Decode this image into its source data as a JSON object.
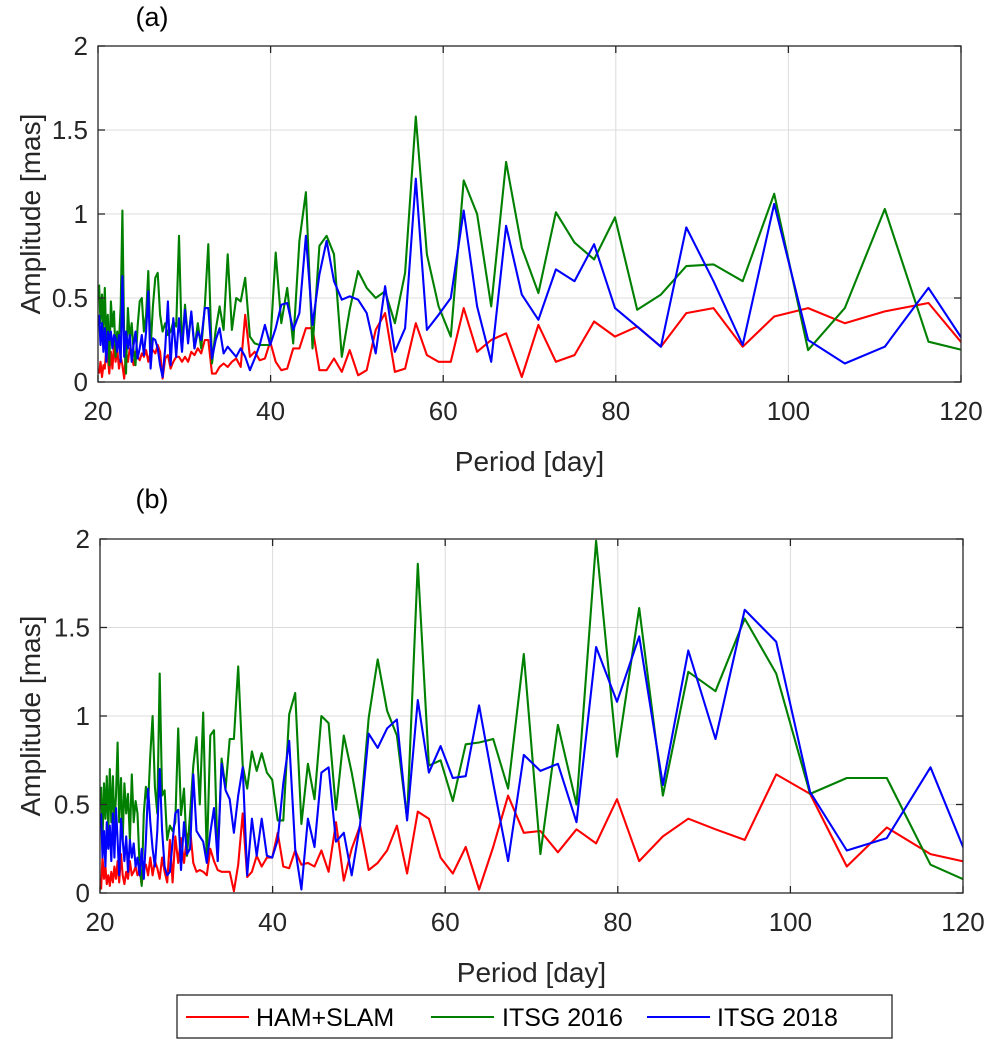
{
  "chart_data": {
    "type": "line",
    "legend": {
      "placement": "bottom-center",
      "entries": [
        "HAM+SLAM",
        "ITSG 2016",
        "ITSG 2018"
      ]
    },
    "colors": {
      "HAM+SLAM": "#ff0000",
      "ITSG 2016": "#008000",
      "ITSG 2018": "#0000ff"
    },
    "x": [
      20.13,
      20.29,
      20.46,
      20.62,
      20.79,
      20.96,
      21.13,
      21.31,
      21.49,
      21.67,
      21.85,
      22.04,
      22.23,
      22.43,
      22.63,
      22.83,
      23.04,
      23.25,
      23.46,
      23.68,
      23.9,
      24.12,
      24.35,
      24.59,
      24.83,
      25.07,
      25.32,
      25.57,
      25.83,
      26.09,
      26.36,
      26.64,
      26.92,
      27.2,
      27.49,
      27.79,
      28.1,
      28.41,
      28.73,
      29.06,
      29.39,
      29.73,
      30.08,
      30.44,
      30.81,
      31.18,
      31.57,
      31.96,
      32.37,
      32.78,
      33.21,
      33.64,
      34.09,
      34.55,
      35.03,
      35.51,
      36.01,
      36.53,
      37.06,
      37.6,
      38.16,
      38.74,
      39.34,
      39.95,
      40.59,
      41.24,
      41.92,
      42.62,
      43.34,
      44.09,
      44.86,
      45.66,
      46.49,
      47.35,
      48.25,
      49.17,
      50.14,
      51.14,
      52.18,
      53.27,
      54.4,
      55.59,
      56.82,
      58.11,
      59.47,
      60.88,
      62.37,
      63.93,
      65.56,
      67.29,
      69.11,
      71.03,
      73.06,
      75.21,
      77.48,
      79.91,
      82.48,
      85.23,
      88.17,
      91.32,
      94.7,
      98.35,
      102.28,
      106.54,
      111.17,
      116.23,
      121.76
    ],
    "panels": [
      {
        "label": "(a)",
        "xlabel": "Period [day]",
        "ylabel": "Amplitude [mas]",
        "xlim": [
          20,
          120
        ],
        "ylim": [
          0,
          2
        ],
        "xticks": [
          "20",
          "40",
          "60",
          "80",
          "100",
          "120"
        ],
        "xtick_values": [
          20,
          40,
          60,
          80,
          100,
          120
        ],
        "yticks": [
          "0",
          "0.5",
          "1",
          "1.5",
          "2"
        ],
        "ytick_values": [
          0,
          0.5,
          1,
          1.5,
          2
        ],
        "grid": true,
        "series": [
          {
            "name": "HAM+SLAM",
            "values": [
              0.05,
              0.12,
              0.03,
              0.1,
              0.08,
              0.2,
              0.14,
              0.05,
              0.18,
              0.08,
              0.22,
              0.12,
              0.2,
              0.08,
              0.15,
              0.1,
              0.02,
              0.18,
              0.12,
              0.2,
              0.15,
              0.1,
              0.18,
              0.15,
              0.13,
              0.17,
              0.15,
              0.19,
              0.12,
              0.18,
              0.19,
              0.17,
              0.22,
              0.18,
              0.02,
              0.14,
              0.16,
              0.08,
              0.12,
              0.15,
              0.15,
              0.12,
              0.15,
              0.12,
              0.18,
              0.16,
              0.2,
              0.17,
              0.25,
              0.25,
              0.05,
              0.05,
              0.09,
              0.11,
              0.09,
              0.12,
              0.14,
              0.09,
              0.4,
              0.15,
              0.18,
              0.13,
              0.14,
              0.24,
              0.12,
              0.07,
              0.08,
              0.2,
              0.2,
              0.32,
              0.32,
              0.07,
              0.07,
              0.14,
              0.06,
              0.19,
              0.04,
              0.07,
              0.31,
              0.41,
              0.06,
              0.08,
              0.35,
              0.16,
              0.12,
              0.12,
              0.44,
              0.18,
              0.25,
              0.29,
              0.03,
              0.34,
              0.12,
              0.16,
              0.36,
              0.27,
              0.33,
              0.21,
              0.41,
              0.44,
              0.21,
              0.39,
              0.44,
              0.35,
              0.42,
              0.47,
              0.13
            ]
          },
          {
            "name": "ITSG 2016",
            "values": [
              0.58,
              0.35,
              0.52,
              0.3,
              0.56,
              0.25,
              0.4,
              0.1,
              0.48,
              0.33,
              0.42,
              0.15,
              0.3,
              0.25,
              0.45,
              1.02,
              0.25,
              0.05,
              0.44,
              0.25,
              0.35,
              0.18,
              0.1,
              0.33,
              0.48,
              0.5,
              0.3,
              0.4,
              0.66,
              0.2,
              0.45,
              0.62,
              0.65,
              0.4,
              0.3,
              0.35,
              0.28,
              0.3,
              0.36,
              0.33,
              0.87,
              0.19,
              0.46,
              0.25,
              0.41,
              0.2,
              0.35,
              0.2,
              0.45,
              0.82,
              0.11,
              0.31,
              0.45,
              0.31,
              0.76,
              0.31,
              0.5,
              0.48,
              0.62,
              0.27,
              0.23,
              0.22,
              0.22,
              0.22,
              0.77,
              0.35,
              0.56,
              0.23,
              0.84,
              1.13,
              0.2,
              0.81,
              0.87,
              0.76,
              0.15,
              0.43,
              0.66,
              0.56,
              0.5,
              0.54,
              0.35,
              0.65,
              1.58,
              0.76,
              0.45,
              0.27,
              1.2,
              1.0,
              0.45,
              1.31,
              0.8,
              0.53,
              1.01,
              0.83,
              0.73,
              0.98,
              0.43,
              0.52,
              0.69,
              0.7,
              0.6,
              1.12,
              0.19,
              0.44,
              1.03,
              0.24,
              0.17
            ]
          },
          {
            "name": "ITSG 2018",
            "values": [
              0.4,
              0.22,
              0.35,
              0.18,
              0.32,
              0.12,
              0.3,
              0.25,
              0.3,
              0.2,
              0.28,
              0.26,
              0.18,
              0.28,
              0.12,
              0.63,
              0.15,
              0.3,
              0.2,
              0.28,
              0.12,
              0.22,
              0.3,
              0.14,
              0.2,
              0.28,
              0.16,
              0.3,
              0.54,
              0.08,
              0.26,
              0.25,
              0.2,
              0.1,
              0.03,
              0.2,
              0.48,
              0.1,
              0.38,
              0.15,
              0.38,
              0.18,
              0.43,
              0.23,
              0.42,
              0.2,
              0.3,
              0.25,
              0.44,
              0.44,
              0.14,
              0.25,
              0.32,
              0.17,
              0.21,
              0.18,
              0.15,
              0.2,
              0.15,
              0.07,
              0.14,
              0.22,
              0.34,
              0.22,
              0.32,
              0.46,
              0.47,
              0.31,
              0.41,
              0.87,
              0.34,
              0.64,
              0.84,
              0.6,
              0.49,
              0.51,
              0.49,
              0.41,
              0.17,
              0.57,
              0.18,
              0.32,
              1.21,
              0.31,
              0.4,
              0.5,
              1.02,
              0.45,
              0.12,
              0.93,
              0.52,
              0.37,
              0.67,
              0.6,
              0.82,
              0.44,
              0.33,
              0.21,
              0.92,
              0.6,
              0.22,
              1.06,
              0.25,
              0.11,
              0.21,
              0.56,
              0.13
            ]
          }
        ]
      },
      {
        "label": "(b)",
        "xlabel": "Period [day]",
        "ylabel": "Amplitude [mas]",
        "xlim": [
          20,
          120
        ],
        "ylim": [
          0,
          2
        ],
        "xticks": [
          "20",
          "40",
          "60",
          "80",
          "100",
          "120"
        ],
        "xtick_values": [
          20,
          40,
          60,
          80,
          100,
          120
        ],
        "yticks": [
          "0",
          "0.5",
          "1",
          "1.5",
          "2"
        ],
        "ytick_values": [
          0,
          0.5,
          1,
          1.5,
          2
        ],
        "grid": true,
        "series": [
          {
            "name": "HAM+SLAM",
            "values": [
              0.02,
              0.2,
              0.08,
              0.15,
              0.05,
              0.1,
              0.04,
              0.12,
              0.06,
              0.15,
              0.08,
              0.18,
              0.06,
              0.22,
              0.1,
              0.05,
              0.12,
              0.08,
              0.18,
              0.1,
              0.12,
              0.15,
              0.1,
              0.13,
              0.05,
              0.15,
              0.16,
              0.1,
              0.2,
              0.1,
              0.18,
              0.14,
              0.08,
              0.2,
              0.12,
              0.06,
              0.3,
              0.06,
              0.32,
              0.17,
              0.31,
              0.17,
              0.32,
              0.36,
              0.17,
              0.12,
              0.13,
              0.12,
              0.1,
              0.25,
              0.18,
              0.13,
              0.12,
              0.12,
              0.12,
              0.01,
              0.16,
              0.45,
              0.09,
              0.12,
              0.21,
              0.15,
              0.2,
              0.2,
              0.34,
              0.15,
              0.14,
              0.24,
              0.16,
              0.17,
              0.15,
              0.24,
              0.12,
              0.4,
              0.07,
              0.25,
              0.38,
              0.13,
              0.17,
              0.24,
              0.38,
              0.11,
              0.46,
              0.42,
              0.2,
              0.11,
              0.26,
              0.02,
              0.26,
              0.55,
              0.34,
              0.35,
              0.23,
              0.36,
              0.28,
              0.53,
              0.18,
              0.32,
              0.42,
              0.36,
              0.3,
              0.67,
              0.56,
              0.15,
              0.37,
              0.22,
              0.16
            ]
          },
          {
            "name": "ITSG 2016",
            "values": [
              0.6,
              0.3,
              0.62,
              0.42,
              0.66,
              0.35,
              0.7,
              0.4,
              0.66,
              0.38,
              0.55,
              0.85,
              0.4,
              0.65,
              0.3,
              0.62,
              0.45,
              0.56,
              0.3,
              0.67,
              0.4,
              0.52,
              0.45,
              0.15,
              0.04,
              0.45,
              0.6,
              0.5,
              0.78,
              1.0,
              0.6,
              0.45,
              1.24,
              0.55,
              0.58,
              0.3,
              0.38,
              0.35,
              0.4,
              0.93,
              0.44,
              0.59,
              0.21,
              0.45,
              0.72,
              0.88,
              0.5,
              1.02,
              0.19,
              0.89,
              0.92,
              0.18,
              0.76,
              0.59,
              0.87,
              0.87,
              1.28,
              0.72,
              0.59,
              0.8,
              0.69,
              0.79,
              0.68,
              0.64,
              0.41,
              0.41,
              1.01,
              1.13,
              0.39,
              0.73,
              0.53,
              1.0,
              0.96,
              0.47,
              0.89,
              0.68,
              0.42,
              0.99,
              1.32,
              1.03,
              0.89,
              0.42,
              1.86,
              0.72,
              0.75,
              0.52,
              0.84,
              0.85,
              0.87,
              0.59,
              1.35,
              0.22,
              0.95,
              0.5,
              1.99,
              0.77,
              1.61,
              0.55,
              1.25,
              1.14,
              1.55,
              1.24,
              0.56,
              0.65,
              0.65,
              0.16,
              0.04
            ]
          },
          {
            "name": "ITSG 2018",
            "values": [
              0.45,
              0.2,
              0.35,
              0.15,
              0.4,
              0.25,
              0.38,
              0.18,
              0.45,
              0.2,
              0.48,
              0.3,
              0.1,
              0.42,
              0.3,
              0.18,
              0.32,
              0.12,
              0.3,
              0.2,
              0.28,
              0.15,
              0.2,
              0.1,
              0.25,
              0.08,
              0.3,
              0.59,
              0.4,
              0.25,
              0.15,
              0.35,
              0.7,
              0.35,
              0.15,
              0.1,
              0.12,
              0.29,
              0.45,
              0.47,
              0.13,
              0.4,
              0.22,
              0.25,
              0.67,
              0.35,
              0.32,
              0.29,
              0.17,
              0.34,
              0.48,
              0.18,
              0.73,
              0.58,
              0.53,
              0.34,
              0.55,
              0.71,
              0.1,
              0.42,
              0.21,
              0.42,
              0.21,
              0.2,
              0.3,
              0.62,
              0.86,
              0.25,
              0.02,
              0.42,
              0.26,
              0.68,
              0.71,
              0.29,
              0.34,
              0.1,
              0.39,
              0.9,
              0.82,
              0.93,
              0.98,
              0.41,
              1.09,
              0.68,
              0.83,
              0.65,
              0.66,
              1.06,
              0.62,
              0.18,
              0.78,
              0.69,
              0.73,
              0.4,
              1.39,
              1.08,
              1.45,
              0.61,
              1.37,
              0.87,
              1.6,
              1.42,
              0.57,
              0.24,
              0.31,
              0.71,
              0.05
            ]
          }
        ]
      }
    ]
  }
}
